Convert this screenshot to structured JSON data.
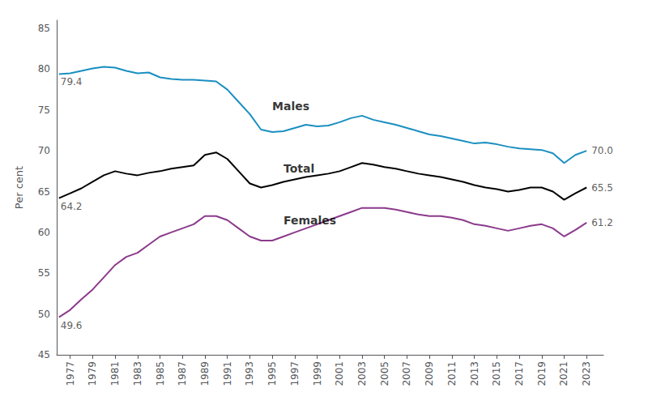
{
  "chart_data": {
    "type": "line",
    "ylabel": "Per cent",
    "x": [
      1976,
      1977,
      1978,
      1979,
      1980,
      1981,
      1982,
      1983,
      1984,
      1985,
      1986,
      1987,
      1988,
      1989,
      1990,
      1991,
      1992,
      1993,
      1994,
      1995,
      1996,
      1997,
      1998,
      1999,
      2000,
      2001,
      2002,
      2003,
      2004,
      2005,
      2006,
      2007,
      2008,
      2009,
      2010,
      2011,
      2012,
      2013,
      2014,
      2015,
      2016,
      2017,
      2018,
      2019,
      2020,
      2021,
      2022,
      2023
    ],
    "series": [
      {
        "color": "#1a8fc1",
        "values": [
          79.4,
          79.5,
          79.8,
          80.1,
          80.3,
          80.2,
          79.8,
          79.5,
          79.6,
          79.0,
          78.8,
          78.7,
          78.7,
          78.6,
          78.5,
          77.5,
          76.0,
          74.5,
          72.6,
          72.3,
          72.4,
          72.8,
          73.2,
          73.0,
          73.1,
          73.5,
          74.0,
          74.3,
          73.8,
          73.5,
          73.2,
          72.8,
          72.4,
          72.0,
          71.8,
          71.5,
          71.2,
          70.9,
          71.0,
          70.8,
          70.5,
          70.3,
          70.2,
          70.1,
          69.7,
          68.5,
          69.5,
          70.0
        ]
      },
      {
        "color": "#000000",
        "values": [
          64.2,
          64.8,
          65.4,
          66.2,
          67.0,
          67.5,
          67.2,
          67.0,
          67.3,
          67.5,
          67.8,
          68.0,
          68.2,
          69.5,
          69.8,
          69.0,
          67.5,
          66.0,
          65.5,
          65.8,
          66.2,
          66.5,
          66.8,
          67.0,
          67.2,
          67.5,
          68.0,
          68.5,
          68.3,
          68.0,
          67.8,
          67.5,
          67.2,
          67.0,
          66.8,
          66.5,
          66.2,
          65.8,
          65.5,
          65.3,
          65.0,
          65.2,
          65.5,
          65.5,
          65.0,
          64.0,
          64.8,
          65.5
        ]
      },
      {
        "color": "#8b3a8b",
        "values": [
          49.6,
          50.5,
          51.8,
          53.0,
          54.5,
          56.0,
          57.0,
          57.5,
          58.5,
          59.5,
          60.0,
          60.5,
          61.0,
          62.0,
          62.0,
          61.5,
          60.5,
          59.5,
          59.0,
          59.0,
          59.5,
          60.0,
          60.5,
          61.0,
          61.5,
          62.0,
          62.5,
          63.0,
          63.0,
          63.0,
          62.8,
          62.5,
          62.2,
          62.0,
          62.0,
          61.8,
          61.5,
          61.0,
          60.8,
          60.5,
          60.2,
          60.5,
          60.8,
          61.0,
          60.5,
          59.5,
          60.3,
          61.2
        ]
      }
    ],
    "xlim": [
      1975.8,
      2024.5
    ],
    "xticks": [
      1977,
      1979,
      1981,
      1983,
      1985,
      1987,
      1989,
      1991,
      1993,
      1995,
      1997,
      1999,
      2001,
      2003,
      2005,
      2007,
      2009,
      2011,
      2013,
      2015,
      2017,
      2019,
      2021,
      2023
    ],
    "ylim": [
      45,
      86
    ],
    "yticks": [
      45,
      50,
      55,
      60,
      65,
      70,
      75,
      80,
      85
    ],
    "grid": false,
    "annotations": [
      {
        "text": "79.4",
        "x": 1976,
        "y": 79.4
      },
      {
        "text": "64.2",
        "x": 1976,
        "y": 64.2
      },
      {
        "text": "49.6",
        "x": 1976,
        "y": 49.6
      },
      {
        "text": "70.0",
        "x": 2023,
        "y": 70.0
      },
      {
        "text": "65.5",
        "x": 2023,
        "y": 65.5
      },
      {
        "text": "61.2",
        "x": 2023,
        "y": 61.2
      },
      {
        "text": "Males",
        "x": 1995,
        "y": 75.5,
        "color": "#000000"
      },
      {
        "text": "Total",
        "x": 1996,
        "y": 67.8,
        "color": "#000000"
      },
      {
        "text": "Females",
        "x": 1996,
        "y": 61.5,
        "color": "#000000"
      }
    ]
  }
}
